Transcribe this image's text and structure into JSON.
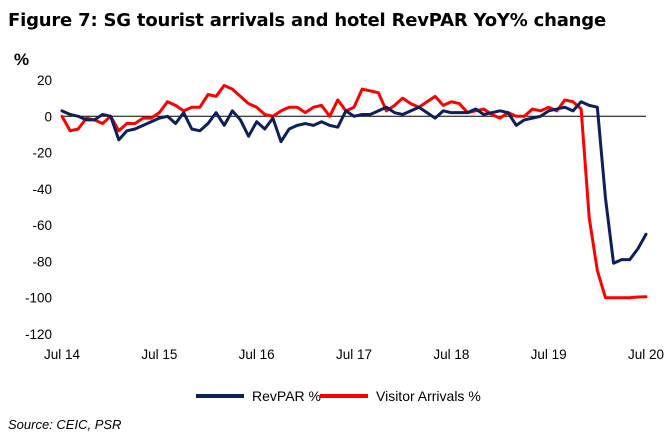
{
  "title": "Figure 7: SG tourist arrivals and hotel RevPAR YoY% change",
  "source": "Source: CEIC, PSR",
  "colors": {
    "revpar": "#0d1f5c",
    "arrivals": "#ff0000"
  },
  "chart_data": {
    "type": "line",
    "unit_label": "%",
    "ylim": [
      -120,
      20
    ],
    "yticks": [
      20,
      0,
      -20,
      -40,
      -60,
      -80,
      -100,
      -120
    ],
    "x_range": [
      0,
      72
    ],
    "xticks": [
      {
        "label": "Jul 14",
        "x": 0
      },
      {
        "label": "Jul 15",
        "x": 12
      },
      {
        "label": "Jul 16",
        "x": 24
      },
      {
        "label": "Jul 17",
        "x": 36
      },
      {
        "label": "Jul 18",
        "x": 48
      },
      {
        "label": "Jul 19",
        "x": 60
      },
      {
        "label": "Jul 20",
        "x": 72
      }
    ],
    "legend_position": "bottom",
    "series": [
      {
        "name": "RevPAR %",
        "key": "revpar",
        "values": [
          3,
          1,
          0,
          -2,
          -2,
          1,
          0,
          -13,
          -8,
          -7,
          -5,
          -3,
          -1,
          0,
          -4,
          2,
          -7,
          -8,
          -4,
          2,
          -5,
          3,
          -2,
          -11,
          -3,
          -7,
          -1,
          -14,
          -7,
          -5,
          -4,
          -5,
          -3,
          -5,
          -6,
          3,
          0,
          1,
          1,
          3,
          5,
          2,
          1,
          3,
          5,
          2,
          -1,
          3,
          2,
          2,
          2,
          4,
          1,
          2,
          3,
          2,
          -5,
          -2,
          -1,
          0,
          3,
          4,
          5,
          3,
          8,
          6,
          5,
          -45,
          -81,
          -79,
          -79,
          -73,
          -65
        ]
      },
      {
        "name": "Visitor Arrivals %",
        "key": "arrivals",
        "values": [
          0,
          -8,
          -7,
          -1,
          -2,
          -4,
          0,
          -8,
          -4,
          -4,
          -1,
          -1,
          2,
          8,
          6,
          3,
          5,
          5,
          12,
          11,
          17,
          15,
          11,
          7,
          5,
          1,
          0,
          3,
          5,
          5,
          2,
          5,
          6,
          0,
          9,
          3,
          5,
          15,
          14,
          13,
          3,
          6,
          10,
          7,
          5,
          8,
          11,
          6,
          8,
          7,
          2,
          3,
          4,
          1,
          -1,
          2,
          0,
          0,
          4,
          3,
          5,
          3,
          9,
          8,
          4,
          -56,
          -85,
          -100,
          -100,
          -100,
          -100,
          -99.6,
          -99.5
        ]
      }
    ]
  }
}
